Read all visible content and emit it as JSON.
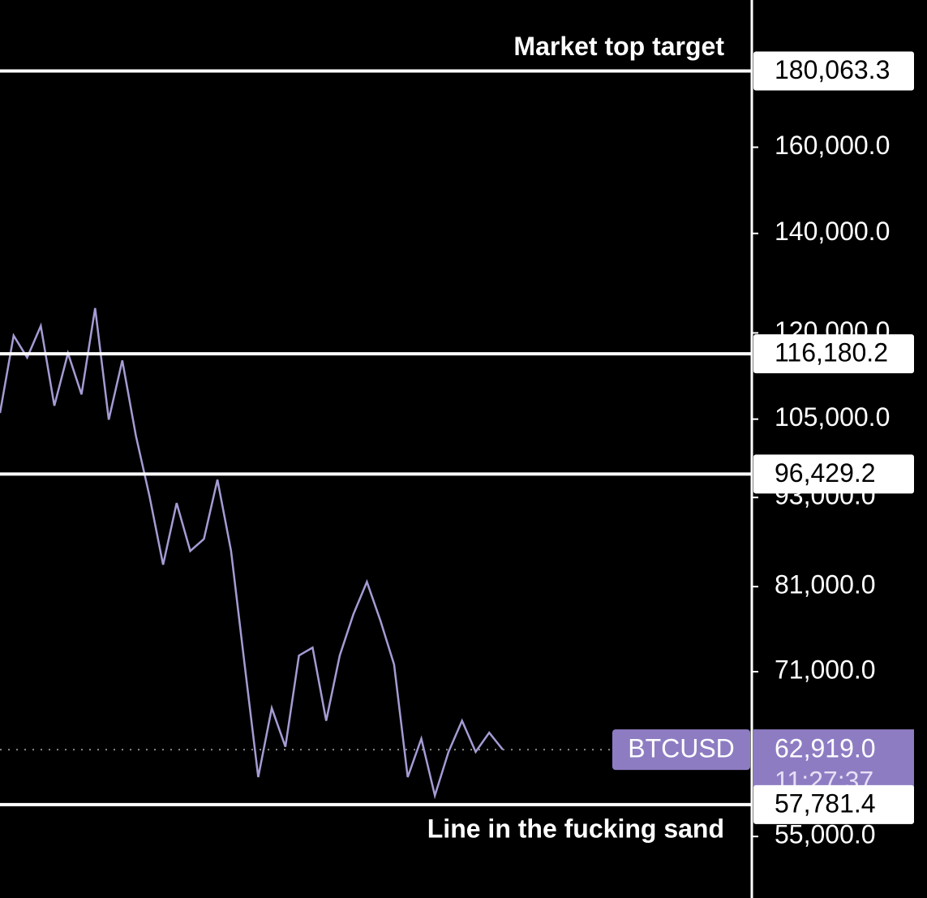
{
  "chart_data": {
    "type": "line",
    "log_scale": true,
    "ylim": [
      50000,
      201000
    ],
    "yticks": [
      {
        "value": 160000,
        "label": "160,000.0"
      },
      {
        "value": 140000,
        "label": "140,000.0"
      },
      {
        "value": 120000,
        "label": "120,000.0"
      },
      {
        "value": 105000,
        "label": "105,000.0"
      },
      {
        "value": 93000,
        "label": "93,000.0"
      },
      {
        "value": 81000,
        "label": "81,000.0"
      },
      {
        "value": 71000,
        "label": "71,000.0"
      },
      {
        "value": 55000,
        "label": "55,000.0"
      }
    ],
    "series": [
      {
        "color": "#a49cd4",
        "values": [
          106000,
          119500,
          115500,
          121300,
          107200,
          116300,
          109100,
          124700,
          104900,
          115000,
          102300,
          93200,
          83800,
          92200,
          85600,
          87200,
          95600,
          85600,
          71800,
          60300,
          67100,
          63200,
          72800,
          73700,
          65800,
          72800,
          77600,
          81600,
          76800,
          71800,
          60300,
          64000,
          58600,
          62700,
          65800,
          62700,
          64600,
          62919
        ]
      }
    ],
    "horizontal_lines": [
      {
        "value": 180063.3,
        "value_label": "180,063.3",
        "text": "Market top target"
      },
      {
        "value": 116180.2,
        "value_label": "116,180.2"
      },
      {
        "value": 96429.2,
        "value_label": "96,429.2"
      },
      {
        "value": 57781.4,
        "value_label": "57,781.4",
        "text": "Line in the fucking sand"
      }
    ],
    "last_price": {
      "symbol": "BTCUSD",
      "value": 62919.0,
      "value_label": "62,919.0",
      "countdown": "11:27:37",
      "color": "#8e7cc3"
    }
  }
}
